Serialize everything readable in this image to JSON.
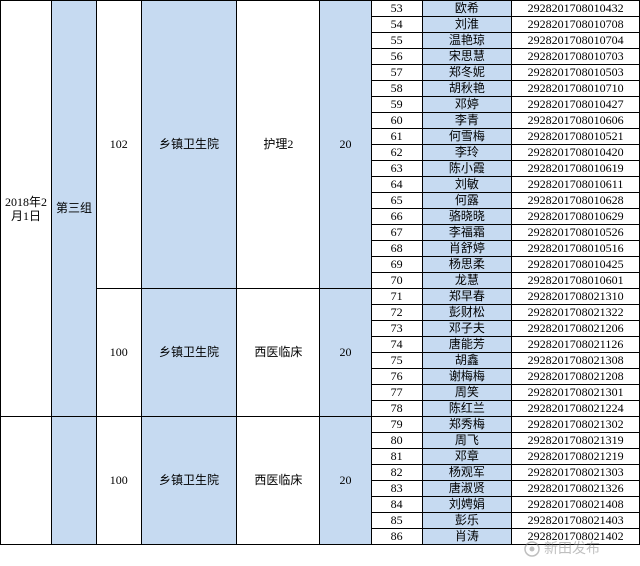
{
  "colors": {
    "highlight": "#c6daf1",
    "border": "#000000",
    "background": "#ffffff",
    "watermark": "rgba(128,128,128,0.5)"
  },
  "columns": {
    "widths_pct": [
      8,
      7,
      7,
      15,
      13,
      8,
      8,
      14,
      20
    ]
  },
  "date_col": "2018年2月1日",
  "group_col": "第三组",
  "sections": [
    {
      "code": "102",
      "org": "乡镇卫生院",
      "spec": "护理2",
      "count": "20",
      "rows": [
        {
          "n": "53",
          "name": "欧希",
          "id": "2928201708010432"
        },
        {
          "n": "54",
          "name": "刘淮",
          "id": "2928201708010708"
        },
        {
          "n": "55",
          "name": "温艳琼",
          "id": "2928201708010704"
        },
        {
          "n": "56",
          "name": "宋思慧",
          "id": "2928201708010703"
        },
        {
          "n": "57",
          "name": "郑冬妮",
          "id": "2928201708010503"
        },
        {
          "n": "58",
          "name": "胡秋艳",
          "id": "2928201708010710"
        },
        {
          "n": "59",
          "name": "邓婷",
          "id": "2928201708010427"
        },
        {
          "n": "60",
          "name": "李青",
          "id": "2928201708010606"
        },
        {
          "n": "61",
          "name": "何雪梅",
          "id": "2928201708010521"
        },
        {
          "n": "62",
          "name": "李玲",
          "id": "2928201708010420"
        },
        {
          "n": "63",
          "name": "陈小霞",
          "id": "2928201708010619"
        },
        {
          "n": "64",
          "name": "刘敏",
          "id": "2928201708010611"
        },
        {
          "n": "65",
          "name": "何露",
          "id": "2928201708010628"
        },
        {
          "n": "66",
          "name": "骆晓晓",
          "id": "2928201708010629"
        },
        {
          "n": "67",
          "name": "李福霜",
          "id": "2928201708010526"
        },
        {
          "n": "68",
          "name": "肖舒婷",
          "id": "2928201708010516"
        },
        {
          "n": "69",
          "name": "杨思柔",
          "id": "2928201708010425"
        },
        {
          "n": "70",
          "name": "龙慧",
          "id": "2928201708010601"
        }
      ]
    },
    {
      "code": "100",
      "org": "乡镇卫生院",
      "spec": "西医临床",
      "count": "20",
      "rows": [
        {
          "n": "71",
          "name": "郑早春",
          "id": "2928201708021310"
        },
        {
          "n": "72",
          "name": "彭财松",
          "id": "2928201708021322"
        },
        {
          "n": "73",
          "name": "邓子夫",
          "id": "2928201708021206"
        },
        {
          "n": "74",
          "name": "唐能芳",
          "id": "2928201708021126"
        },
        {
          "n": "75",
          "name": "胡鑫",
          "id": "2928201708021308"
        },
        {
          "n": "76",
          "name": "谢梅梅",
          "id": "2928201708021208"
        },
        {
          "n": "77",
          "name": "周笑",
          "id": "2928201708021301"
        },
        {
          "n": "78",
          "name": "陈红兰",
          "id": "2928201708021224"
        }
      ]
    },
    {
      "code": "100",
      "org": "乡镇卫生院",
      "spec": "西医临床",
      "count": "20",
      "rows": [
        {
          "n": "79",
          "name": "郑秀梅",
          "id": "2928201708021302"
        },
        {
          "n": "80",
          "name": "周飞",
          "id": "2928201708021319"
        },
        {
          "n": "81",
          "name": "邓章",
          "id": "2928201708021219"
        },
        {
          "n": "82",
          "name": "杨观军",
          "id": "2928201708021303"
        },
        {
          "n": "83",
          "name": "唐淑贤",
          "id": "2928201708021326"
        },
        {
          "n": "84",
          "name": "刘娉娟",
          "id": "2928201708021408"
        },
        {
          "n": "85",
          "name": "彭乐",
          "id": "2928201708021403"
        },
        {
          "n": "86",
          "name": "肖涛",
          "id": "2928201708021402"
        }
      ]
    }
  ],
  "watermark_text": "新田发布"
}
